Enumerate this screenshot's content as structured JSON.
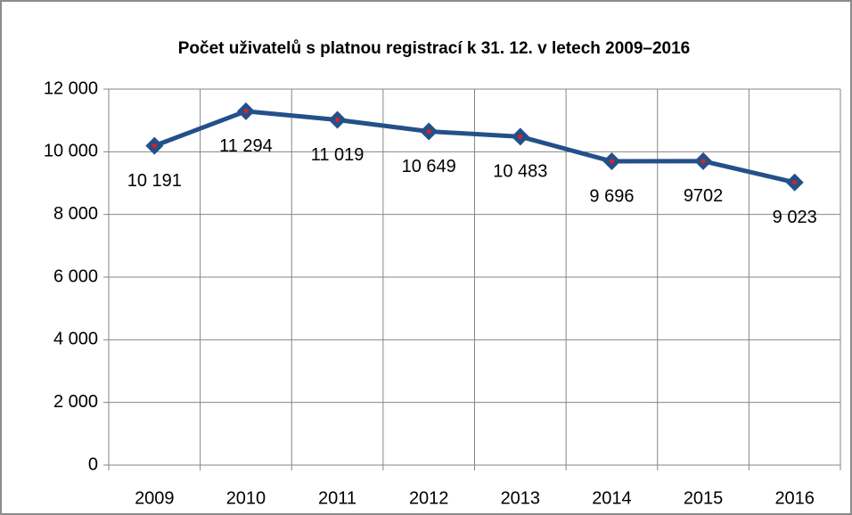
{
  "chart_data": {
    "type": "line",
    "title": "Počet uživatelů s platnou registrací k 31. 12. v letech 2009–2016",
    "categories": [
      "2009",
      "2010",
      "2011",
      "2012",
      "2013",
      "2014",
      "2015",
      "2016"
    ],
    "series": [
      {
        "name": null,
        "color": "#24508a",
        "marker_color": "#e0201f",
        "values": [
          10191,
          11294,
          11019,
          10649,
          10483,
          9696,
          9702,
          9023
        ],
        "value_labels": [
          "10 191",
          "11 294",
          "11 019",
          "10 649",
          "10 483",
          "9 696",
          "9702",
          "9 023"
        ]
      }
    ],
    "ylim": [
      0,
      12000
    ],
    "yticks": [
      0,
      {
        "value": 2000,
        "label": "2 000"
      },
      {
        "value": 4000,
        "label": "4 000"
      },
      {
        "value": 6000,
        "label": "6 000"
      },
      {
        "value": 8000,
        "label": "8 000"
      },
      {
        "value": 10000,
        "label": "10 000"
      },
      {
        "value": 12000,
        "label": "12 000"
      }
    ],
    "grid": true
  }
}
